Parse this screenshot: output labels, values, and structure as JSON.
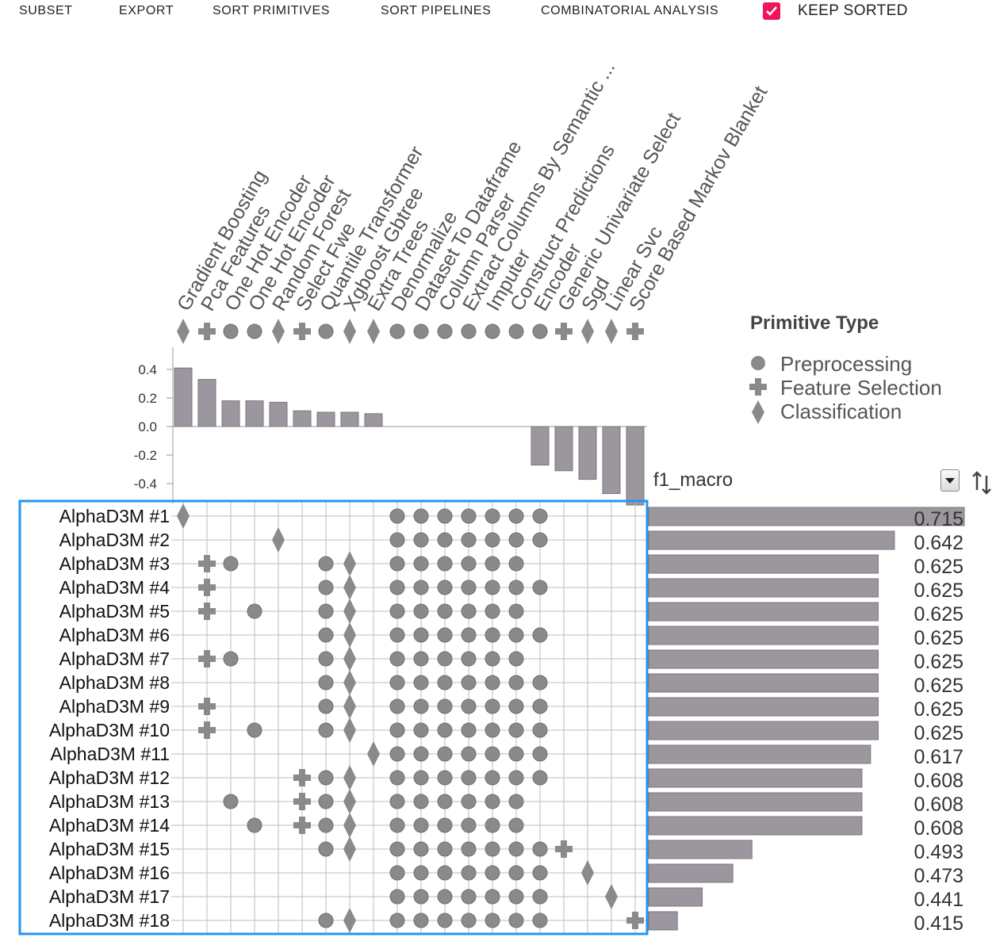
{
  "menu": {
    "subset": "SUBSET",
    "export": "EXPORT",
    "sort_primitives": "SORT PRIMITIVES",
    "sort_pipelines": "SORT PIPELINES",
    "combinatorial_analysis": "COMBINATORIAL ANALYSIS",
    "keep_sorted": "KEEP SORTED",
    "keep_sorted_checked": true
  },
  "legend": {
    "title": "Primitive Type",
    "items": [
      {
        "type": "preprocessing",
        "label": "Preprocessing",
        "icon": "circle-icon"
      },
      {
        "type": "feature_selection",
        "label": "Feature Selection",
        "icon": "cross-icon"
      },
      {
        "type": "classification",
        "label": "Classification",
        "icon": "diamond-icon"
      }
    ]
  },
  "metric": {
    "name": "f1_macro",
    "select_icon": "dropdown-arrow-icon",
    "sort_icon": "sort-toggle-icon"
  },
  "colors": {
    "mark": "#8a8a8a",
    "bar": "#9c979f",
    "selection_border": "#2196f3",
    "checkbox": "#f0145a"
  },
  "chart_data": {
    "type": "bar",
    "primitives": [
      {
        "name": "Gradient Boosting",
        "type": "classification"
      },
      {
        "name": "Pca Features",
        "type": "feature_selection"
      },
      {
        "name": "One Hot Encoder",
        "type": "preprocessing"
      },
      {
        "name": "One Hot Encoder",
        "type": "preprocessing"
      },
      {
        "name": "Random Forest",
        "type": "classification"
      },
      {
        "name": "Select Fwe",
        "type": "feature_selection"
      },
      {
        "name": "Quantile Transformer",
        "type": "preprocessing"
      },
      {
        "name": "Xgboost Gbtree",
        "type": "classification"
      },
      {
        "name": "Extra Trees",
        "type": "classification"
      },
      {
        "name": "Denormalize",
        "type": "preprocessing"
      },
      {
        "name": "Dataset To Dataframe",
        "type": "preprocessing"
      },
      {
        "name": "Column Parser",
        "type": "preprocessing"
      },
      {
        "name": "Extract Columns By Semantic ...",
        "type": "preprocessing"
      },
      {
        "name": "Imputer",
        "type": "preprocessing"
      },
      {
        "name": "Construct Predictions",
        "type": "preprocessing"
      },
      {
        "name": "Encoder",
        "type": "preprocessing"
      },
      {
        "name": "Generic Univariate Select",
        "type": "feature_selection"
      },
      {
        "name": "Sgd",
        "type": "classification"
      },
      {
        "name": "Linear Svc",
        "type": "classification"
      },
      {
        "name": "Score Based Markov Blanket",
        "type": "feature_selection"
      }
    ],
    "primitive_importance": [
      0.41,
      0.33,
      0.18,
      0.18,
      0.17,
      0.11,
      0.1,
      0.1,
      0.09,
      0,
      0,
      0,
      0,
      0,
      0,
      -0.27,
      -0.31,
      -0.37,
      -0.47,
      -0.55
    ],
    "importance_axis": {
      "ticks": [
        0.4,
        0.2,
        0.0,
        -0.2,
        -0.4
      ],
      "tick_labels": [
        "0.4",
        "0.2",
        "0.0",
        "-0.2",
        "-0.4"
      ],
      "ylim": [
        -0.55,
        0.55
      ]
    },
    "pipelines": [
      {
        "name": "AlphaD3M #1",
        "score": 0.715,
        "score_label": "0.715",
        "primitives": [
          0,
          9,
          10,
          11,
          12,
          13,
          14,
          15
        ]
      },
      {
        "name": "AlphaD3M #2",
        "score": 0.642,
        "score_label": "0.642",
        "primitives": [
          4,
          9,
          10,
          11,
          12,
          13,
          14,
          15
        ]
      },
      {
        "name": "AlphaD3M #3",
        "score": 0.625,
        "score_label": "0.625",
        "primitives": [
          1,
          2,
          6,
          7,
          9,
          10,
          11,
          12,
          13,
          14
        ]
      },
      {
        "name": "AlphaD3M #4",
        "score": 0.625,
        "score_label": "0.625",
        "primitives": [
          1,
          6,
          7,
          9,
          10,
          11,
          12,
          13,
          14,
          15
        ]
      },
      {
        "name": "AlphaD3M #5",
        "score": 0.625,
        "score_label": "0.625",
        "primitives": [
          1,
          3,
          6,
          7,
          9,
          10,
          11,
          12,
          13,
          14
        ]
      },
      {
        "name": "AlphaD3M #6",
        "score": 0.625,
        "score_label": "0.625",
        "primitives": [
          6,
          7,
          9,
          10,
          11,
          12,
          13,
          14,
          15
        ]
      },
      {
        "name": "AlphaD3M #7",
        "score": 0.625,
        "score_label": "0.625",
        "primitives": [
          1,
          2,
          6,
          7,
          9,
          10,
          11,
          12,
          13,
          14
        ]
      },
      {
        "name": "AlphaD3M #8",
        "score": 0.625,
        "score_label": "0.625",
        "primitives": [
          6,
          7,
          9,
          10,
          11,
          12,
          13,
          14,
          15
        ]
      },
      {
        "name": "AlphaD3M #9",
        "score": 0.625,
        "score_label": "0.625",
        "primitives": [
          1,
          6,
          7,
          9,
          10,
          11,
          12,
          13,
          14,
          15
        ]
      },
      {
        "name": "AlphaD3M #10",
        "score": 0.625,
        "score_label": "0.625",
        "primitives": [
          1,
          3,
          6,
          7,
          9,
          10,
          11,
          12,
          13,
          14,
          15
        ]
      },
      {
        "name": "AlphaD3M #11",
        "score": 0.617,
        "score_label": "0.617",
        "primitives": [
          8,
          9,
          10,
          11,
          12,
          13,
          14,
          15
        ]
      },
      {
        "name": "AlphaD3M #12",
        "score": 0.608,
        "score_label": "0.608",
        "primitives": [
          5,
          6,
          7,
          9,
          10,
          11,
          12,
          13,
          14,
          15
        ]
      },
      {
        "name": "AlphaD3M #13",
        "score": 0.608,
        "score_label": "0.608",
        "primitives": [
          2,
          5,
          6,
          7,
          9,
          10,
          11,
          12,
          13,
          14
        ]
      },
      {
        "name": "AlphaD3M #14",
        "score": 0.608,
        "score_label": "0.608",
        "primitives": [
          3,
          5,
          6,
          7,
          9,
          10,
          11,
          12,
          13,
          14
        ]
      },
      {
        "name": "AlphaD3M #15",
        "score": 0.493,
        "score_label": "0.493",
        "primitives": [
          6,
          7,
          9,
          10,
          11,
          12,
          13,
          14,
          15,
          16
        ]
      },
      {
        "name": "AlphaD3M #16",
        "score": 0.473,
        "score_label": "0.473",
        "primitives": [
          9,
          10,
          11,
          12,
          13,
          14,
          15,
          17
        ]
      },
      {
        "name": "AlphaD3M #17",
        "score": 0.441,
        "score_label": "0.441",
        "primitives": [
          9,
          10,
          11,
          12,
          13,
          14,
          15,
          18
        ]
      },
      {
        "name": "AlphaD3M #18",
        "score": 0.415,
        "score_label": "0.415",
        "primitives": [
          6,
          7,
          9,
          10,
          11,
          12,
          13,
          14,
          15,
          19
        ]
      }
    ],
    "score_axis_min": 0.385
  }
}
